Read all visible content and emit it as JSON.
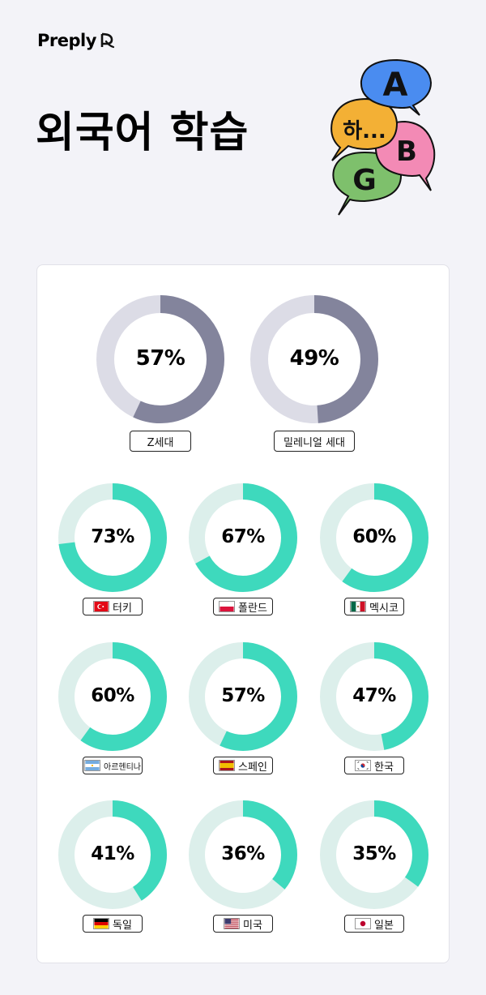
{
  "header": {
    "brand": "Preply",
    "title": "외국어 학습"
  },
  "illustration": {
    "bubble_letters": [
      "A",
      "하...",
      "B",
      "G"
    ],
    "colors": {
      "blue": "#4a8cf0",
      "orange": "#f3b035",
      "pink": "#f38ab5",
      "green": "#7ec06c"
    }
  },
  "colors": {
    "generation_fill": "#83849c",
    "generation_track": "#dcdce6",
    "country_fill": "#3ed9bd",
    "country_track": "#dcefeb"
  },
  "chart_data": [
    {
      "type": "pie",
      "subtype": "donut",
      "group": "generations",
      "categories": [
        "Z세대",
        "밀레니얼 세대"
      ],
      "values": [
        57,
        49
      ],
      "labels": [
        "57%",
        "49%"
      ],
      "unit": "%"
    },
    {
      "type": "pie",
      "subtype": "donut",
      "group": "countries",
      "categories": [
        "터키",
        "폴란드",
        "멕시코",
        "아르헨티나",
        "스페인",
        "한국",
        "독일",
        "미국",
        "일본"
      ],
      "values": [
        73,
        67,
        60,
        60,
        57,
        47,
        41,
        36,
        35
      ],
      "labels": [
        "73%",
        "67%",
        "60%",
        "60%",
        "57%",
        "47%",
        "41%",
        "36%",
        "35%"
      ],
      "flags": [
        "turkey-flag-icon",
        "poland-flag-icon",
        "mexico-flag-icon",
        "argentina-flag-icon",
        "spain-flag-icon",
        "korea-flag-icon",
        "germany-flag-icon",
        "usa-flag-icon",
        "japan-flag-icon"
      ],
      "unit": "%"
    }
  ]
}
